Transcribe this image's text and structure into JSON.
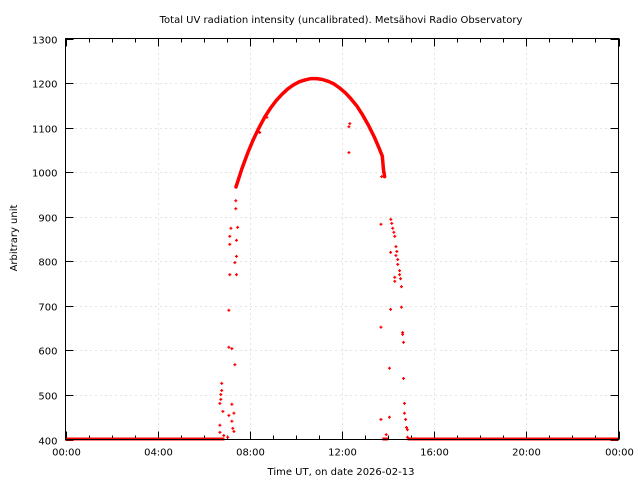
{
  "chart_data": {
    "type": "scatter",
    "title": "Total UV radiation intensity (uncalibrated). Metsähovi Radio Observatory",
    "xlabel": "Time UT, on date 2026-02-13",
    "ylabel": "Arbitrary unit",
    "xlim": [
      0,
      24
    ],
    "ylim": [
      400,
      1300
    ],
    "grid": true,
    "legend": "none",
    "x_ticks": [
      0,
      4,
      8,
      12,
      16,
      20,
      24
    ],
    "x_tick_labels": [
      "00:00",
      "04:00",
      "08:00",
      "12:00",
      "16:00",
      "20:00",
      "00:00"
    ],
    "x_minor_step_hours": 1,
    "y_ticks": [
      400,
      500,
      600,
      700,
      800,
      900,
      1000,
      1100,
      1200,
      1300
    ],
    "y_tick_labels": [
      "400",
      "500",
      "600",
      "700",
      "800",
      "900",
      "1000",
      "1100",
      "1200",
      "1300"
    ],
    "series_color": "#ff0000",
    "baseline_segments": [
      [
        0,
        6.9,
        400
      ],
      [
        13.75,
        14.0,
        400
      ],
      [
        14.85,
        24,
        400
      ]
    ],
    "main_curve": [
      [
        7.4,
        967
      ],
      [
        7.65,
        1007
      ],
      [
        7.9,
        1042
      ],
      [
        8.15,
        1073
      ],
      [
        8.4,
        1100
      ],
      [
        8.65,
        1124
      ],
      [
        8.9,
        1144
      ],
      [
        9.15,
        1161
      ],
      [
        9.4,
        1175
      ],
      [
        9.65,
        1187
      ],
      [
        9.9,
        1196
      ],
      [
        10.15,
        1203
      ],
      [
        10.4,
        1207
      ],
      [
        10.65,
        1210
      ],
      [
        10.9,
        1210
      ],
      [
        11.15,
        1208
      ],
      [
        11.4,
        1204
      ],
      [
        11.65,
        1198
      ],
      [
        11.9,
        1189
      ],
      [
        12.15,
        1178
      ],
      [
        12.4,
        1164
      ],
      [
        12.65,
        1148
      ],
      [
        12.9,
        1128
      ],
      [
        13.15,
        1105
      ],
      [
        13.4,
        1079
      ],
      [
        13.6,
        1055
      ],
      [
        13.75,
        1036
      ],
      [
        13.8,
        1005
      ],
      [
        13.85,
        990
      ]
    ],
    "points": [
      [
        7.09,
        690
      ],
      [
        7.13,
        770
      ],
      [
        7.18,
        874
      ],
      [
        7.13,
        856
      ],
      [
        7.13,
        838
      ],
      [
        7.39,
        936
      ],
      [
        7.39,
        918
      ],
      [
        7.47,
        876
      ],
      [
        7.42,
        847
      ],
      [
        7.42,
        811
      ],
      [
        7.35,
        797
      ],
      [
        7.42,
        770
      ],
      [
        7.09,
        607
      ],
      [
        7.22,
        604
      ],
      [
        7.35,
        568
      ],
      [
        6.78,
        526
      ],
      [
        6.78,
        510
      ],
      [
        6.74,
        501
      ],
      [
        6.74,
        490
      ],
      [
        6.7,
        481
      ],
      [
        6.83,
        463
      ],
      [
        6.7,
        432
      ],
      [
        6.7,
        416
      ],
      [
        7.09,
        454
      ],
      [
        7.22,
        479
      ],
      [
        7.31,
        459
      ],
      [
        7.22,
        441
      ],
      [
        7.26,
        425
      ],
      [
        7.31,
        418
      ],
      [
        6.87,
        409
      ],
      [
        7.04,
        405
      ],
      [
        8.43,
        1089
      ],
      [
        8.74,
        1123
      ],
      [
        12.3,
        1102
      ],
      [
        12.34,
        1109
      ],
      [
        12.3,
        1044
      ],
      [
        13.72,
        990
      ],
      [
        13.69,
        883
      ],
      [
        13.69,
        652
      ],
      [
        13.69,
        445
      ],
      [
        13.92,
        411
      ],
      [
        14.12,
        894
      ],
      [
        14.16,
        885
      ],
      [
        14.2,
        874
      ],
      [
        14.25,
        865
      ],
      [
        14.29,
        856
      ],
      [
        14.34,
        833
      ],
      [
        14.38,
        822
      ],
      [
        14.34,
        813
      ],
      [
        14.42,
        804
      ],
      [
        14.42,
        793
      ],
      [
        14.5,
        779
      ],
      [
        14.5,
        770
      ],
      [
        14.54,
        761
      ],
      [
        14.58,
        743
      ],
      [
        14.11,
        820
      ],
      [
        14.29,
        764
      ],
      [
        14.29,
        755
      ],
      [
        14.11,
        692
      ],
      [
        14.58,
        697
      ],
      [
        14.63,
        640
      ],
      [
        14.63,
        636
      ],
      [
        14.67,
        618
      ],
      [
        14.06,
        560
      ],
      [
        14.67,
        537
      ],
      [
        14.71,
        481
      ],
      [
        14.71,
        459
      ],
      [
        14.76,
        445
      ],
      [
        14.06,
        450
      ],
      [
        14.8,
        427
      ],
      [
        14.84,
        422
      ],
      [
        14.84,
        405
      ]
    ]
  }
}
